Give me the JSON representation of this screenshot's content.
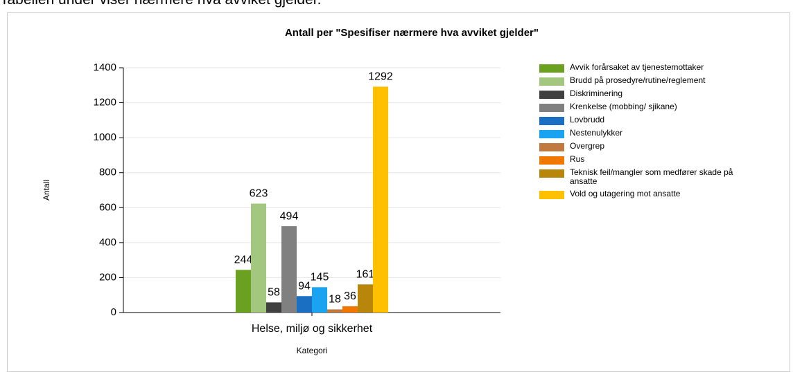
{
  "intro": "Tabellen under viser nærmere hva avviket gjelder.",
  "chart_data": {
    "type": "bar",
    "title": "Antall per \"Spesifiser nærmere hva avviket gjelder\"",
    "x_label": "Kategori",
    "y_label": "Antall",
    "categories": [
      "Helse, miljø og sikkerhet"
    ],
    "series": [
      {
        "name": "Avvik forårsaket av tjenestemottaker",
        "color": "#6aa121",
        "values": [
          244
        ]
      },
      {
        "name": "Brudd på prosedyre/rutine/reglement",
        "color": "#a3c77f",
        "values": [
          623
        ]
      },
      {
        "name": "Diskriminering",
        "color": "#404040",
        "values": [
          58
        ]
      },
      {
        "name": "Krenkelse (mobbing/ sjikane)",
        "color": "#808080",
        "values": [
          494
        ]
      },
      {
        "name": "Lovbrudd",
        "color": "#1a6fc2",
        "values": [
          94
        ]
      },
      {
        "name": "Nestenulykker",
        "color": "#1aa3f0",
        "values": [
          145
        ]
      },
      {
        "name": "Overgrep",
        "color": "#c07a40",
        "values": [
          18
        ]
      },
      {
        "name": "Rus",
        "color": "#f07800",
        "values": [
          36
        ]
      },
      {
        "name": "Teknisk feil/mangler som medfører skade på ansatte",
        "color": "#b8860b",
        "values": [
          161
        ]
      },
      {
        "name": "Vold og utagering mot ansatte",
        "color": "#ffc000",
        "values": [
          1292
        ]
      }
    ],
    "ylim": [
      0,
      1400
    ],
    "yticks": [
      0,
      200,
      400,
      600,
      800,
      1000,
      1200,
      1400
    ],
    "grid": true
  }
}
